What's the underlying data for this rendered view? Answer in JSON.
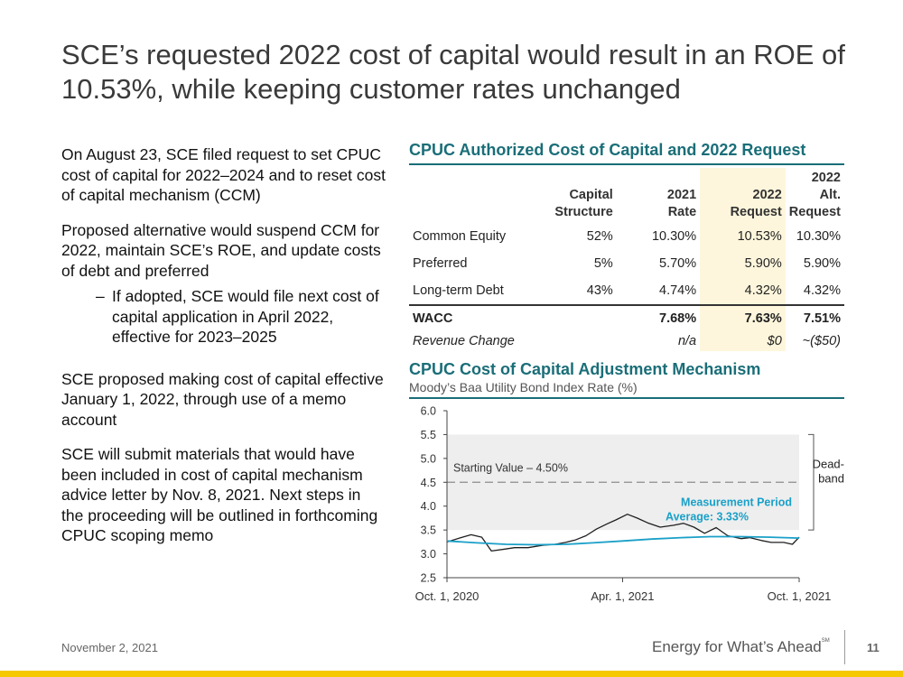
{
  "title": "SCE’s requested 2022 cost of capital would result in an ROE of 10.53%, while keeping customer rates unchanged",
  "left": {
    "p1": "On August 23, SCE filed request to set CPUC cost of capital for 2022–2024 and to reset cost of capital mechanism (CCM)",
    "p2": "Proposed alternative would suspend CCM for 2022, maintain SCE’s ROE, and update costs of debt and preferred",
    "dash": "–",
    "sub1": "If adopted, SCE would file next cost of capital application in April 2022, effective  for 2023–2025",
    "p3": "SCE proposed making cost of capital effective January 1, 2022, through use of a memo account",
    "p4": "SCE will submit materials that would have been included in cost of capital mechanism advice letter by Nov. 8, 2021. Next steps in the proceeding will be outlined in forthcoming CPUC scoping memo"
  },
  "table": {
    "heading": "CPUC Authorized Cost of Capital and 2022 Request",
    "col1_a": "Capital",
    "col1_b": "Structure",
    "col2_a": "2021",
    "col2_b": "Rate",
    "col3_a": "2022",
    "col3_b": "Request",
    "col4_a": "2022 Alt.",
    "col4_b": "Request",
    "rows": [
      {
        "label": "Common Equity",
        "structure": "52%",
        "rate2021": "10.30%",
        "request2022": "10.53%",
        "alt2022": "10.30%"
      },
      {
        "label": "Preferred",
        "structure": "5%",
        "rate2021": "5.70%",
        "request2022": "5.90%",
        "alt2022": "5.90%"
      },
      {
        "label": "Long-term Debt",
        "structure": "43%",
        "rate2021": "4.74%",
        "request2022": "4.32%",
        "alt2022": "4.32%"
      }
    ],
    "wacc": {
      "label": "WACC",
      "rate2021": "7.68%",
      "request2022": "7.63%",
      "alt2022": "7.51%"
    },
    "revenue": {
      "label": "Revenue Change",
      "rate2021": "n/a",
      "request2022": "$0",
      "alt2022": "~($50)"
    }
  },
  "chart_heading": "CPUC Cost of Capital Adjustment Mechanism",
  "chart_data": {
    "type": "line",
    "subtitle": "Moody’s Baa Utility Bond Index Rate (%)",
    "ylim": [
      2.5,
      6.0
    ],
    "yticks": [
      "2.5",
      "3.0",
      "3.5",
      "4.0",
      "4.5",
      "5.0",
      "5.5",
      "6.0"
    ],
    "xlim": [
      "2020-10-01",
      "2021-10-01"
    ],
    "xticks": [
      {
        "date": "2020-10-01",
        "label": "Oct. 1, 2020"
      },
      {
        "date": "2021-04-01",
        "label": "Apr. 1, 2021"
      },
      {
        "date": "2021-10-01",
        "label": "Oct. 1, 2021"
      }
    ],
    "deadband": [
      3.5,
      5.5
    ],
    "starting_value": 4.5,
    "starting_label": "Starting Value – 4.50%",
    "deadband_label": [
      "Dead-",
      "band"
    ],
    "average_label": [
      "Measurement Period",
      "Average: 3.33%"
    ],
    "series": [
      {
        "color": "#1f1f1f",
        "x": [
          "2020-10-01",
          "2020-10-12",
          "2020-10-26",
          "2020-11-06",
          "2020-11-16",
          "2020-11-30",
          "2020-12-10",
          "2020-12-24",
          "2021-01-08",
          "2021-01-21",
          "2021-02-01",
          "2021-02-11",
          "2021-02-22",
          "2021-03-05",
          "2021-03-16",
          "2021-03-25",
          "2021-04-06",
          "2021-04-16",
          "2021-04-27",
          "2021-05-10",
          "2021-05-24",
          "2021-06-03",
          "2021-06-14",
          "2021-06-25",
          "2021-07-07",
          "2021-07-19",
          "2021-08-02",
          "2021-08-11",
          "2021-08-23",
          "2021-09-02",
          "2021-09-15",
          "2021-09-24",
          "2021-10-01"
        ],
        "values": [
          3.25,
          3.32,
          3.4,
          3.35,
          3.06,
          3.1,
          3.13,
          3.13,
          3.18,
          3.2,
          3.24,
          3.29,
          3.38,
          3.52,
          3.63,
          3.71,
          3.83,
          3.75,
          3.65,
          3.56,
          3.6,
          3.64,
          3.56,
          3.43,
          3.55,
          3.38,
          3.32,
          3.34,
          3.28,
          3.24,
          3.24,
          3.2,
          3.35
        ]
      },
      {
        "color": "#1aa0c8",
        "x": [
          "2020-10-01",
          "2020-11-01",
          "2020-12-01",
          "2021-01-01",
          "2021-02-01",
          "2021-03-01",
          "2021-04-01",
          "2021-05-01",
          "2021-06-01",
          "2021-07-01",
          "2021-08-01",
          "2021-09-01",
          "2021-10-01"
        ],
        "values": [
          3.27,
          3.23,
          3.2,
          3.19,
          3.2,
          3.23,
          3.27,
          3.31,
          3.34,
          3.36,
          3.36,
          3.35,
          3.33
        ]
      }
    ]
  },
  "footer": {
    "date": "November 2, 2021",
    "brand": "Energy for What’s Ahead",
    "brand_mark": "SM",
    "page": "11"
  },
  "colors": {
    "accent": "#1a6e78",
    "band": "#eeeeee",
    "highlight": "#fdf6dc",
    "footer_bar": "#f5c800",
    "average_text": "#1aa0c8"
  }
}
